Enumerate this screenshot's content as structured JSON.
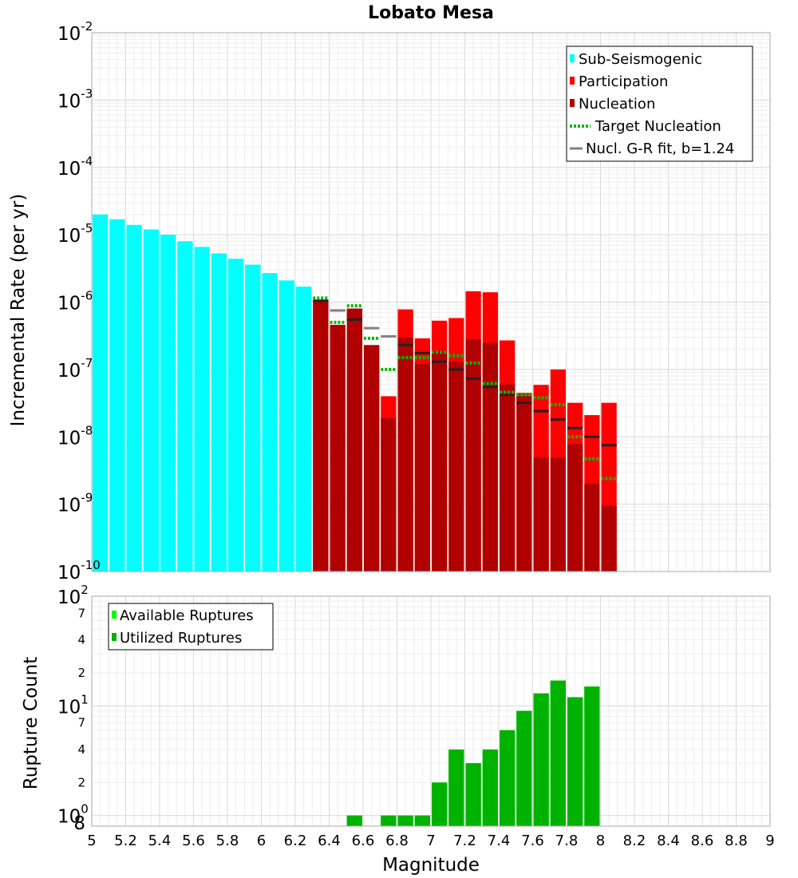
{
  "chart_data": [
    {
      "type": "bar",
      "title": "Lobato Mesa",
      "xlabel": "",
      "ylabel": "Incremental Rate (per yr)",
      "yscale": "log",
      "xlim": [
        5,
        9
      ],
      "ylim": [
        1e-10,
        0.01
      ],
      "y_ticks": [
        {
          "base": "10",
          "exp": "-10"
        },
        {
          "base": "10",
          "exp": "-9"
        },
        {
          "base": "10",
          "exp": "-8"
        },
        {
          "base": "10",
          "exp": "-7"
        },
        {
          "base": "10",
          "exp": "-6"
        },
        {
          "base": "10",
          "exp": "-5"
        },
        {
          "base": "10",
          "exp": "-4"
        },
        {
          "base": "10",
          "exp": "-3"
        },
        {
          "base": "10",
          "exp": "-2"
        }
      ],
      "bin_width": 0.1,
      "series": [
        {
          "name": "Sub-Seismogenic",
          "color": "#00ffff",
          "x": [
            5.05,
            5.15,
            5.25,
            5.35,
            5.45,
            5.55,
            5.65,
            5.75,
            5.85,
            5.95,
            6.05,
            6.15,
            6.25
          ],
          "values": [
            2e-05,
            1.7e-05,
            1.4e-05,
            1.2e-05,
            1e-05,
            8e-06,
            6.6e-06,
            5.3e-06,
            4.4e-06,
            3.6e-06,
            2.7e-06,
            2.1e-06,
            1.7e-06
          ]
        },
        {
          "name": "Participation",
          "color": "#ff0000",
          "x": [
            6.35,
            6.45,
            6.55,
            6.65,
            6.75,
            6.85,
            6.95,
            7.05,
            7.15,
            7.25,
            7.35,
            7.45,
            7.55,
            7.65,
            7.75,
            7.85,
            7.95,
            8.05
          ],
          "values": [
            1.05e-06,
            4.6e-07,
            8e-07,
            2.3e-07,
            4e-08,
            7.8e-07,
            2.9e-07,
            5.3e-07,
            5.8e-07,
            1.45e-06,
            1.4e-06,
            2.7e-07,
            4.5e-08,
            5.9e-08,
            1e-07,
            3.2e-08,
            2.1e-08,
            3.2e-08
          ]
        },
        {
          "name": "Nucleation",
          "color": "#b00000",
          "x": [
            6.35,
            6.45,
            6.55,
            6.65,
            6.75,
            6.85,
            6.95,
            7.05,
            7.15,
            7.25,
            7.35,
            7.45,
            7.55,
            7.65,
            7.75,
            7.85,
            7.95,
            8.05
          ],
          "values": [
            1.05e-06,
            4.6e-07,
            8e-07,
            2.3e-07,
            1.9e-08,
            3e-07,
            1.2e-07,
            1.9e-07,
            1.3e-07,
            2.8e-07,
            2.5e-07,
            6e-08,
            4e-08,
            5e-09,
            4.9e-09,
            7.8e-09,
            2e-09,
            9.5e-10
          ]
        },
        {
          "name": "Target Nucleation",
          "color": "#00bb00",
          "style": "dotted",
          "x": [
            6.35,
            6.45,
            6.55,
            6.65,
            6.75,
            6.85,
            6.95,
            7.05,
            7.15,
            7.25,
            7.35,
            7.45,
            7.55,
            7.65,
            7.75,
            7.85,
            7.95,
            8.05
          ],
          "values": [
            1.15e-06,
            5e-07,
            8.8e-07,
            2.9e-07,
            1e-07,
            1.5e-07,
            1.5e-07,
            1.8e-07,
            1.6e-07,
            1.25e-07,
            6.2e-08,
            4.6e-08,
            4.2e-08,
            3.8e-08,
            3e-08,
            1e-08,
            4.7e-09,
            2.4e-09
          ]
        },
        {
          "name": "Nucl. G-R fit, b=1.24",
          "color": "#808080",
          "dark_color": "#222222",
          "x": [
            6.35,
            6.45,
            6.55,
            6.65,
            6.75,
            6.85,
            6.95,
            7.05,
            7.15,
            7.25,
            7.35,
            7.45,
            7.55,
            7.65,
            7.75,
            7.85,
            7.95,
            8.05
          ],
          "values": [
            1.05e-06,
            7.5e-07,
            5.5e-07,
            4.1e-07,
            3.1e-07,
            2.3e-07,
            1.75e-07,
            1.3e-07,
            1e-07,
            7.3e-08,
            5.5e-08,
            4.2e-08,
            3.2e-08,
            2.4e-08,
            1.8e-08,
            1.35e-08,
            1e-08,
            7.5e-09
          ]
        }
      ],
      "legend": {
        "position": "top-right",
        "entries": [
          "Sub-Seismogenic",
          "Participation",
          "Nucleation",
          "Target Nucleation",
          "Nucl. G-R fit, b=1.24"
        ]
      }
    },
    {
      "type": "bar",
      "title": "",
      "xlabel": "Magnitude",
      "ylabel": "Rupture Count",
      "yscale": "log",
      "xlim": [
        5,
        9
      ],
      "ylim": [
        0.8,
        100
      ],
      "x_ticks": [
        "5",
        "5.2",
        "5.4",
        "5.6",
        "5.8",
        "6",
        "6.2",
        "6.4",
        "6.6",
        "6.8",
        "7",
        "7.2",
        "7.4",
        "7.6",
        "7.8",
        "8",
        "8.2",
        "8.4",
        "8.6",
        "8.8",
        "9"
      ],
      "y_major_ticks": [
        {
          "base": "10",
          "exp": "0"
        },
        {
          "base": "10",
          "exp": "1"
        },
        {
          "base": "10",
          "exp": "2"
        }
      ],
      "y_minor_ticks": [
        "8",
        "2",
        "4",
        "7",
        "2",
        "4",
        "7"
      ],
      "bin_width": 0.1,
      "series": [
        {
          "name": "Available Ruptures",
          "color": "#00ff00",
          "x": [
            6.55,
            6.75,
            6.85,
            6.95,
            7.05,
            7.15,
            7.25,
            7.35,
            7.45,
            7.55,
            7.65,
            7.75,
            7.85,
            7.95
          ],
          "values": [
            1,
            1,
            1,
            1,
            2,
            4,
            3,
            4,
            6,
            9,
            13,
            17,
            12,
            15
          ]
        },
        {
          "name": "Utilized Ruptures",
          "color": "#00b200",
          "x": [
            6.55,
            6.75,
            6.85,
            6.95,
            7.05,
            7.15,
            7.25,
            7.35,
            7.45,
            7.55,
            7.65,
            7.75,
            7.85,
            7.95
          ],
          "values": [
            1,
            1,
            1,
            1,
            2,
            4,
            3,
            4,
            6,
            9,
            13,
            17,
            12,
            15
          ]
        }
      ],
      "legend": {
        "position": "top-left",
        "entries": [
          "Available Ruptures",
          "Utilized Ruptures"
        ]
      }
    }
  ]
}
